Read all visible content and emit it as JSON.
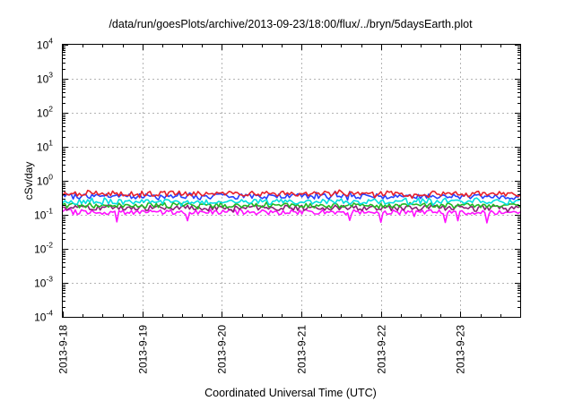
{
  "chart_data": {
    "type": "line",
    "title": "/data/run/goesPlots/archive/2013-09-23/18:00/flux/../bryn/5daysEarth.plot",
    "xlabel": "Coordinated Universal Time (UTC)",
    "ylabel": "cSv/day",
    "yscale": "log",
    "ylim": [
      0.0001,
      10000
    ],
    "y_ticks": [
      {
        "base": "10",
        "exp": "-4",
        "value": 0.0001
      },
      {
        "base": "10",
        "exp": "-3",
        "value": 0.001
      },
      {
        "base": "10",
        "exp": "-2",
        "value": 0.01
      },
      {
        "base": "10",
        "exp": "-1",
        "value": 0.1
      },
      {
        "base": "10",
        "exp": "0",
        "value": 1
      },
      {
        "base": "10",
        "exp": "1",
        "value": 10
      },
      {
        "base": "10",
        "exp": "2",
        "value": 100
      },
      {
        "base": "10",
        "exp": "3",
        "value": 1000
      },
      {
        "base": "10",
        "exp": "4",
        "value": 10000
      }
    ],
    "xlim": [
      "2013-09-18",
      "2013-09-23T18:00"
    ],
    "x_ticks": [
      "2013-9-18",
      "2013-9-19",
      "2013-9-20",
      "2013-9-21",
      "2013-9-22",
      "2013-9-23"
    ],
    "grid": true,
    "legend": "none",
    "series": [
      {
        "color": "#e8202a",
        "typical": 0.42,
        "range": [
          0.3,
          0.55
        ]
      },
      {
        "color": "#2540ff",
        "typical": 0.35,
        "range": [
          0.25,
          0.5
        ]
      },
      {
        "color": "#00e0e0",
        "typical": 0.24,
        "range": [
          0.18,
          0.32
        ]
      },
      {
        "color": "#22b822",
        "typical": 0.19,
        "range": [
          0.15,
          0.24
        ]
      },
      {
        "color": "#8c1e78",
        "typical": 0.16,
        "range": [
          0.12,
          0.2
        ]
      },
      {
        "color": "#ff10ff",
        "typical": 0.12,
        "range": [
          0.05,
          0.15
        ]
      }
    ]
  }
}
